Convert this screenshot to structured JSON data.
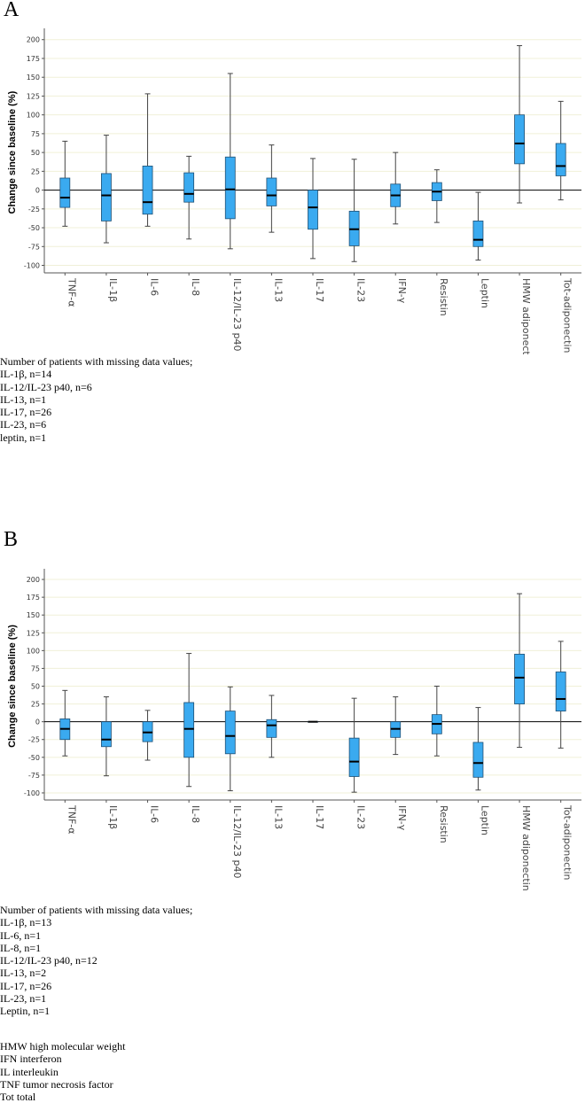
{
  "colors": {
    "box": "#3aaaf0",
    "box_stroke": "#1f4f73",
    "grid": "#f0f0d8",
    "median": "#000000"
  },
  "panels": [
    {
      "letter": "A",
      "notes": [
        "Number of patients with missing data values;",
        "IL-1β, n=14",
        "IL-12/IL-23 p40, n=6",
        "IL-13, n=1",
        "IL-17, n=26",
        "IL-23, n=6",
        "leptin, n=1"
      ]
    },
    {
      "letter": "B",
      "notes": [
        "Number of patients with missing data values;",
        "IL-1β, n=13",
        "IL-6, n=1",
        "IL-8, n=1",
        "IL-12/IL-23 p40, n=12",
        "IL-13, n=2",
        "IL-17, n=26",
        "IL-23, n=1",
        "Leptin, n=1"
      ]
    }
  ],
  "abbreviations": [
    "HMW high molecular weight",
    "IFN interferon",
    "IL interleukin",
    "TNF tumor necrosis factor",
    "Tot total"
  ],
  "chart_data": [
    {
      "type": "box",
      "panel": "A",
      "title": "",
      "ylabel": "Change since baseline (%)",
      "xlabel": "",
      "ylim": [
        -110,
        215
      ],
      "yticks": [
        -100,
        -75,
        -50,
        -25,
        0,
        25,
        50,
        75,
        100,
        125,
        150,
        175,
        200
      ],
      "categories": [
        "TNF-α",
        "IL-1β",
        "IL-6",
        "IL-8",
        "IL-12/IL-23 p40",
        "IL-13",
        "IL-17",
        "IL-23",
        "IFN-γ",
        "Resistin",
        "Leptin",
        "HMW adiponectin",
        "Tot-adiponectin"
      ],
      "boxes": [
        {
          "min": -48,
          "q1": -23,
          "median": -10,
          "q3": 16,
          "max": 65
        },
        {
          "min": -70,
          "q1": -41,
          "median": -7,
          "q3": 22,
          "max": 73
        },
        {
          "min": -48,
          "q1": -32,
          "median": -16,
          "q3": 32,
          "max": 128
        },
        {
          "min": -65,
          "q1": -16,
          "median": -5,
          "q3": 23,
          "max": 45
        },
        {
          "min": -78,
          "q1": -38,
          "median": 1,
          "q3": 44,
          "max": 155
        },
        {
          "min": -56,
          "q1": -21,
          "median": -7,
          "q3": 16,
          "max": 60
        },
        {
          "min": -91,
          "q1": -52,
          "median": -23,
          "q3": 0,
          "max": 42
        },
        {
          "min": -95,
          "q1": -74,
          "median": -52,
          "q3": -28,
          "max": 41
        },
        {
          "min": -45,
          "q1": -22,
          "median": -7,
          "q3": 8,
          "max": 50
        },
        {
          "min": -43,
          "q1": -14,
          "median": -2,
          "q3": 10,
          "max": 27
        },
        {
          "min": -93,
          "q1": -75,
          "median": -66,
          "q3": -41,
          "max": -3
        },
        {
          "min": -17,
          "q1": 35,
          "median": 62,
          "q3": 100,
          "max": 192
        },
        {
          "min": -13,
          "q1": 19,
          "median": 32,
          "q3": 62,
          "max": 118
        }
      ]
    },
    {
      "type": "box",
      "panel": "B",
      "title": "",
      "ylabel": "Change since baseline (%)",
      "xlabel": "",
      "ylim": [
        -110,
        215
      ],
      "yticks": [
        -100,
        -75,
        -50,
        -25,
        0,
        25,
        50,
        75,
        100,
        125,
        150,
        175,
        200
      ],
      "categories": [
        "TNF-α",
        "IL-1β",
        "IL-6",
        "IL-8",
        "IL-12/IL-23 p40",
        "IL-13",
        "IL-17",
        "IL-23",
        "IFN-γ",
        "Resistin",
        "Leptin",
        "HMW adiponectin",
        "Tot-adiponectin"
      ],
      "boxes": [
        {
          "min": -48,
          "q1": -25,
          "median": -10,
          "q3": 4,
          "max": 44
        },
        {
          "min": -76,
          "q1": -35,
          "median": -25,
          "q3": 0,
          "max": 35
        },
        {
          "min": -54,
          "q1": -28,
          "median": -15,
          "q3": 0,
          "max": 16
        },
        {
          "min": -91,
          "q1": -50,
          "median": -10,
          "q3": 27,
          "max": 96
        },
        {
          "min": -97,
          "q1": -45,
          "median": -20,
          "q3": 15,
          "max": 49
        },
        {
          "min": -50,
          "q1": -22,
          "median": -5,
          "q3": 3,
          "max": 37
        },
        {
          "min": 0,
          "q1": 0,
          "median": 0,
          "q3": 0,
          "max": 0
        },
        {
          "min": -99,
          "q1": -77,
          "median": -56,
          "q3": -23,
          "max": 33
        },
        {
          "min": -46,
          "q1": -22,
          "median": -10,
          "q3": 0,
          "max": 35
        },
        {
          "min": -48,
          "q1": -17,
          "median": -3,
          "q3": 10,
          "max": 50
        },
        {
          "min": -96,
          "q1": -78,
          "median": -58,
          "q3": -29,
          "max": 20
        },
        {
          "min": -36,
          "q1": 25,
          "median": 62,
          "q3": 95,
          "max": 180
        },
        {
          "min": -37,
          "q1": 15,
          "median": 32,
          "q3": 70,
          "max": 113
        }
      ]
    }
  ]
}
